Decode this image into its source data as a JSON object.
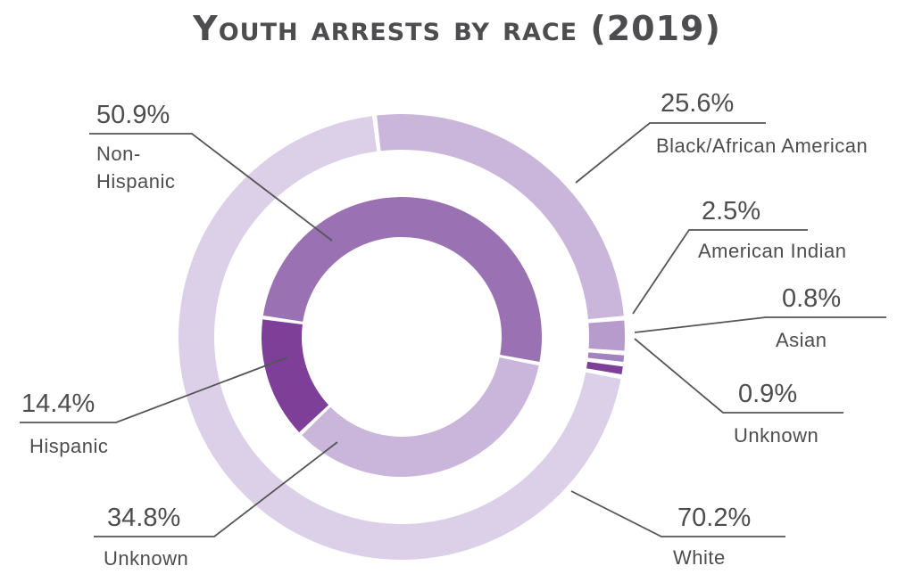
{
  "chart_data": {
    "type": "donut",
    "title": "Youth arrests by race (2019)",
    "rings": [
      {
        "name": "Race",
        "slices": [
          {
            "label": "Black/African American",
            "value": 25.6,
            "value_label": "25.6%",
            "color": "#c9b6da"
          },
          {
            "label": "American Indian",
            "value": 2.5,
            "value_label": "2.5%",
            "color": "#b69bcc"
          },
          {
            "label": "Asian",
            "value": 0.8,
            "value_label": "0.8%",
            "color": "#a383bf"
          },
          {
            "label": "Unknown",
            "value": 0.9,
            "value_label": "0.9%",
            "color": "#7d3f98"
          },
          {
            "label": "White",
            "value": 70.2,
            "value_label": "70.2%",
            "color": "#dcd0e8"
          }
        ]
      },
      {
        "name": "Ethnicity",
        "slices": [
          {
            "label": "Non-Hispanic",
            "value": 50.9,
            "value_label": "50.9%",
            "color": "#9a72b3"
          },
          {
            "label": "Unknown",
            "value": 34.8,
            "value_label": "34.8%",
            "color": "#c9b6da"
          },
          {
            "label": "Hispanic",
            "value": 14.4,
            "value_label": "14.4%",
            "color": "#7d3f98"
          }
        ]
      }
    ],
    "labels": {
      "black": {
        "value": "25.6%",
        "name": "Black/African American"
      },
      "american_indian": {
        "value": "2.5%",
        "name": "American Indian"
      },
      "asian": {
        "value": "0.8%",
        "name": "Asian"
      },
      "unknown_race": {
        "value": "0.9%",
        "name": "Unknown"
      },
      "white": {
        "value": "70.2%",
        "name": "White"
      },
      "non_hispanic": {
        "value": "50.9%",
        "name_line1": "Non-",
        "name_line2": "Hispanic"
      },
      "hispanic": {
        "value": "14.4%",
        "name": "Hispanic"
      },
      "unknown_eth": {
        "value": "34.8%",
        "name": "Unknown"
      }
    }
  }
}
